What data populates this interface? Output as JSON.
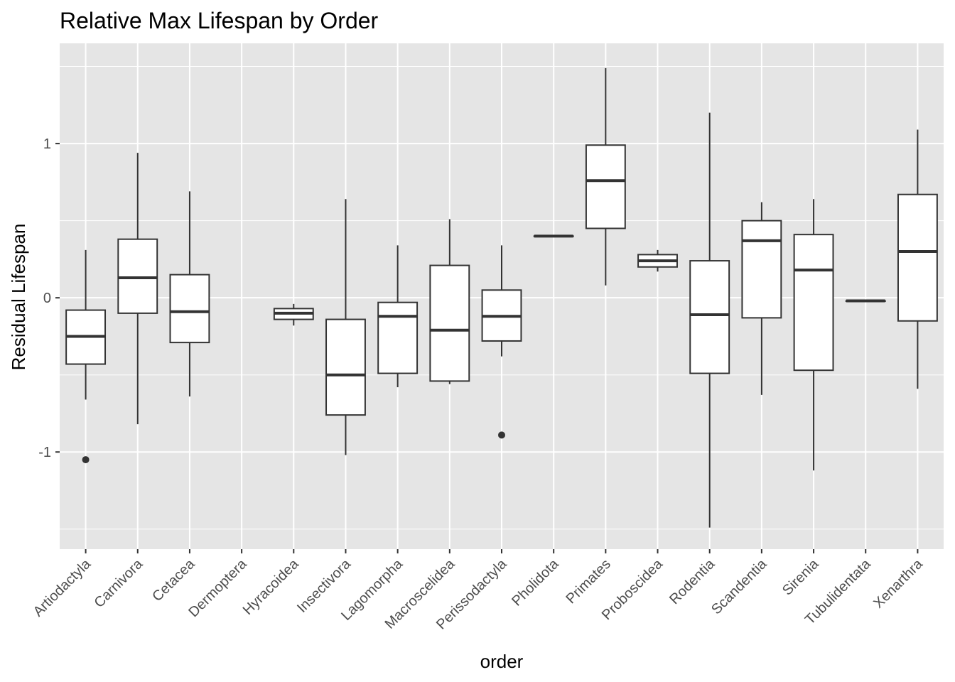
{
  "chart_data": {
    "type": "boxplot",
    "title": "Relative Max Lifespan by Order",
    "xlabel": "order",
    "ylabel": "Residual Lifespan",
    "ylim": [
      -1.63,
      1.65
    ],
    "y_ticks": [
      -1,
      0,
      1
    ],
    "y_tick_labels": [
      "-1",
      "0",
      "1"
    ],
    "grid": true,
    "legend": "none",
    "colors": {
      "panel": "#e5e5e5",
      "grid": "#ffffff",
      "box_fill": "#ffffff",
      "box_stroke": "#333333",
      "tick": "#4d4d4d"
    },
    "categories": [
      "Artiodactyla",
      "Carnivora",
      "Cetacea",
      "Dermoptera",
      "Hyracoidea",
      "Insectivora",
      "Lagomorpha",
      "Macroscelidea",
      "Perissodactyla",
      "Pholidota",
      "Primates",
      "Proboscidea",
      "Rodentia",
      "Scandentia",
      "Sirenia",
      "Tubulidentata",
      "Xenarthra"
    ],
    "boxes": [
      {
        "category": "Artiodactyla",
        "min": -0.66,
        "q1": -0.43,
        "median": -0.25,
        "q3": -0.08,
        "max": 0.31,
        "outliers": [
          -1.05
        ]
      },
      {
        "category": "Carnivora",
        "min": -0.82,
        "q1": -0.1,
        "median": 0.13,
        "q3": 0.38,
        "max": 0.94,
        "outliers": []
      },
      {
        "category": "Cetacea",
        "min": -0.64,
        "q1": -0.29,
        "median": -0.09,
        "q3": 0.15,
        "max": 0.69,
        "outliers": []
      },
      {
        "category": "Dermoptera",
        "min": null,
        "q1": null,
        "median": null,
        "q3": null,
        "max": null,
        "outliers": []
      },
      {
        "category": "Hyracoidea",
        "min": -0.18,
        "q1": -0.14,
        "median": -0.1,
        "q3": -0.07,
        "max": -0.04,
        "outliers": []
      },
      {
        "category": "Insectivora",
        "min": -1.02,
        "q1": -0.76,
        "median": -0.5,
        "q3": -0.14,
        "max": 0.64,
        "outliers": []
      },
      {
        "category": "Lagomorpha",
        "min": -0.58,
        "q1": -0.49,
        "median": -0.12,
        "q3": -0.03,
        "max": 0.34,
        "outliers": []
      },
      {
        "category": "Macroscelidea",
        "min": -0.56,
        "q1": -0.54,
        "median": -0.21,
        "q3": 0.21,
        "max": 0.51,
        "outliers": []
      },
      {
        "category": "Perissodactyla",
        "min": -0.38,
        "q1": -0.28,
        "median": -0.12,
        "q3": 0.05,
        "max": 0.34,
        "outliers": [
          -0.89
        ]
      },
      {
        "category": "Pholidota",
        "min": 0.4,
        "q1": 0.4,
        "median": 0.4,
        "q3": 0.4,
        "max": 0.4,
        "outliers": []
      },
      {
        "category": "Primates",
        "min": 0.08,
        "q1": 0.45,
        "median": 0.76,
        "q3": 0.99,
        "max": 1.49,
        "outliers": []
      },
      {
        "category": "Proboscidea",
        "min": 0.17,
        "q1": 0.2,
        "median": 0.24,
        "q3": 0.28,
        "max": 0.31,
        "outliers": []
      },
      {
        "category": "Rodentia",
        "min": -1.49,
        "q1": -0.49,
        "median": -0.11,
        "q3": 0.24,
        "max": 1.2,
        "outliers": []
      },
      {
        "category": "Scandentia",
        "min": -0.63,
        "q1": -0.13,
        "median": 0.37,
        "q3": 0.5,
        "max": 0.62,
        "outliers": []
      },
      {
        "category": "Sirenia",
        "min": -1.12,
        "q1": -0.47,
        "median": 0.18,
        "q3": 0.41,
        "max": 0.64,
        "outliers": []
      },
      {
        "category": "Tubulidentata",
        "min": -0.02,
        "q1": -0.02,
        "median": -0.02,
        "q3": -0.02,
        "max": -0.02,
        "outliers": []
      },
      {
        "category": "Xenarthra",
        "min": -0.59,
        "q1": -0.15,
        "median": 0.3,
        "q3": 0.67,
        "max": 1.09,
        "outliers": []
      }
    ]
  }
}
